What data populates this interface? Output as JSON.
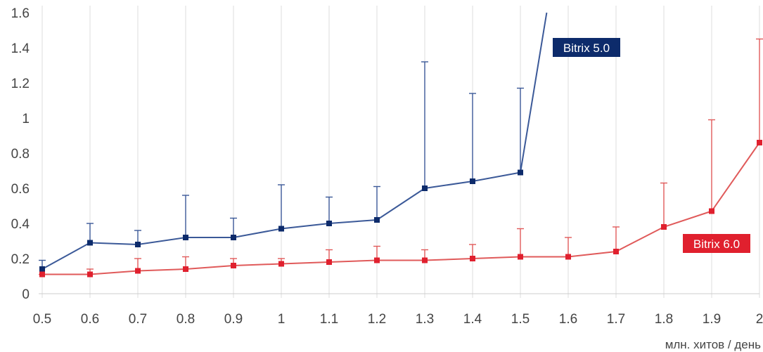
{
  "chart_data": {
    "type": "line",
    "title": "",
    "xlabel": "млн. хитов / день",
    "ylabel": "",
    "x": [
      0.5,
      0.6,
      0.7,
      0.8,
      0.9,
      1.0,
      1.1,
      1.2,
      1.3,
      1.4,
      1.5,
      1.6,
      1.7,
      1.8,
      1.9,
      2.0
    ],
    "x_tick_labels": [
      "0.5",
      "0.6",
      "0.7",
      "0.8",
      "0.9",
      "1",
      "1.1",
      "1.2",
      "1.3",
      "1.4",
      "1.5",
      "1.6",
      "1.7",
      "1.8",
      "1.9",
      "2"
    ],
    "y_ticks": [
      0,
      0.2,
      0.4,
      0.6,
      0.8,
      1,
      1.2,
      1.4,
      1.6
    ],
    "y_tick_labels": [
      "0",
      "0.2",
      "0.4",
      "0.6",
      "0.8",
      "1",
      "1.2",
      "1.4",
      "1.6"
    ],
    "xlim": [
      0.5,
      2.0
    ],
    "ylim": [
      0,
      1.6
    ],
    "grid": "vertical",
    "series": [
      {
        "name": "Bitrix 5.0",
        "color": "#3b5998",
        "label_color": "#0d2b6b",
        "x": [
          0.5,
          0.6,
          0.7,
          0.8,
          0.9,
          1.0,
          1.1,
          1.2,
          1.3,
          1.4,
          1.5
        ],
        "values": [
          0.14,
          0.29,
          0.28,
          0.32,
          0.32,
          0.37,
          0.4,
          0.42,
          0.6,
          0.64,
          0.69
        ],
        "error_upper": [
          0.19,
          0.4,
          0.36,
          0.56,
          0.43,
          0.62,
          0.55,
          0.61,
          1.32,
          1.14,
          1.17
        ],
        "continues_to": {
          "x": 1.555,
          "y": 1.6
        }
      },
      {
        "name": "Bitrix 6.0",
        "color": "#e05a5a",
        "label_color": "#e0202e",
        "x": [
          0.5,
          0.6,
          0.7,
          0.8,
          0.9,
          1.0,
          1.1,
          1.2,
          1.3,
          1.4,
          1.5,
          1.6,
          1.7,
          1.8,
          1.9,
          2.0
        ],
        "values": [
          0.11,
          0.11,
          0.13,
          0.14,
          0.16,
          0.17,
          0.18,
          0.19,
          0.19,
          0.2,
          0.21,
          0.21,
          0.24,
          0.38,
          0.47,
          0.86
        ],
        "error_upper": [
          0.11,
          0.14,
          0.2,
          0.21,
          0.2,
          0.2,
          0.25,
          0.27,
          0.25,
          0.28,
          0.37,
          0.32,
          0.38,
          0.63,
          0.99,
          1.45
        ]
      }
    ]
  }
}
